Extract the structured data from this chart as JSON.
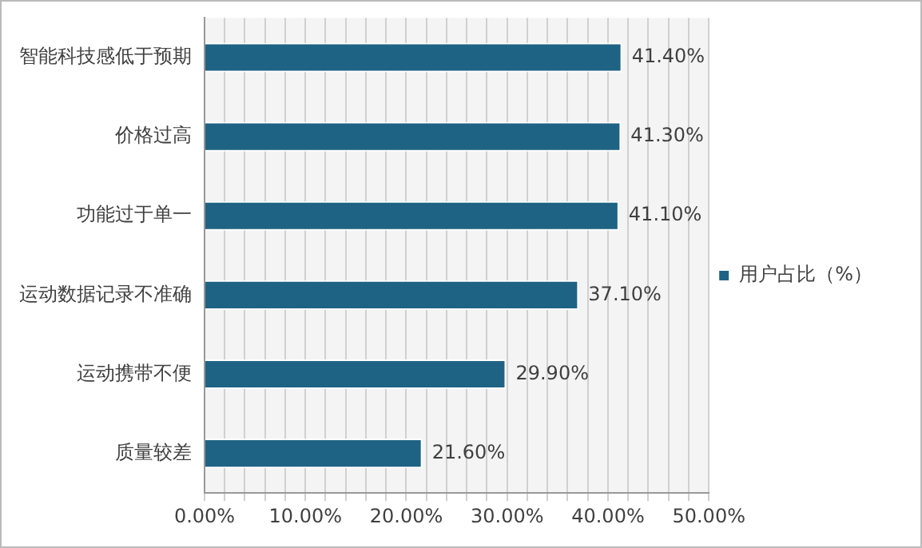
{
  "chart_data": {
    "type": "bar",
    "orientation": "horizontal",
    "categories": [
      "智能科技感低于预期",
      "价格过高",
      "功能过于单一",
      "运动数据记录不准确",
      "运动携带不便",
      "质量较差"
    ],
    "series": [
      {
        "name": "用户占比（%）",
        "color": "#1f6384",
        "values": [
          41.4,
          41.3,
          41.1,
          37.1,
          29.9,
          21.6
        ],
        "value_labels": [
          "41.40%",
          "41.30%",
          "41.10%",
          "37.10%",
          "29.90%",
          "21.60%"
        ]
      }
    ],
    "xlim": [
      0,
      50
    ],
    "xticks": [
      {
        "value": 0,
        "label": "0.00%"
      },
      {
        "value": 2,
        "label": null
      },
      {
        "value": 4,
        "label": null
      },
      {
        "value": 6,
        "label": null
      },
      {
        "value": 8,
        "label": null
      },
      {
        "value": 10,
        "label": "10.00%"
      },
      {
        "value": 12,
        "label": null
      },
      {
        "value": 14,
        "label": null
      },
      {
        "value": 16,
        "label": null
      },
      {
        "value": 18,
        "label": null
      },
      {
        "value": 20,
        "label": "20.00%"
      },
      {
        "value": 22,
        "label": null
      },
      {
        "value": 24,
        "label": null
      },
      {
        "value": 26,
        "label": null
      },
      {
        "value": 28,
        "label": null
      },
      {
        "value": 30,
        "label": "30.00%"
      },
      {
        "value": 32,
        "label": null
      },
      {
        "value": 34,
        "label": null
      },
      {
        "value": 36,
        "label": null
      },
      {
        "value": 38,
        "label": null
      },
      {
        "value": 40,
        "label": "40.00%"
      },
      {
        "value": 42,
        "label": null
      },
      {
        "value": 44,
        "label": null
      },
      {
        "value": 46,
        "label": null
      },
      {
        "value": 48,
        "label": null
      },
      {
        "value": 50,
        "label": "50.00%"
      }
    ],
    "grid": "x",
    "legend": "right"
  }
}
